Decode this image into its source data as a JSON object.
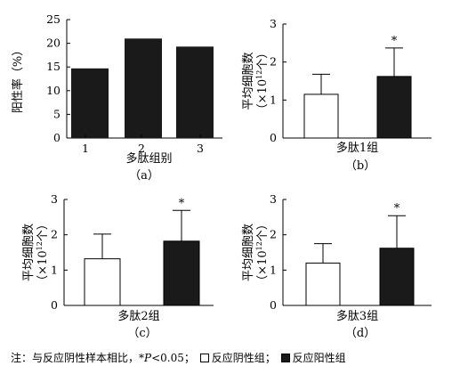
{
  "chart_data": [
    {
      "panel": "(a)",
      "type": "bar",
      "ylabel": "阳性率（%）",
      "xlabel": "多肽组别",
      "categories": [
        "1",
        "2",
        "3"
      ],
      "values": [
        14.7,
        21.0,
        19.3
      ],
      "colors": [
        "#1a1a1a",
        "#1a1a1a",
        "#1a1a1a"
      ],
      "ylim": [
        0,
        25
      ],
      "yticks": [
        "0",
        "5",
        "10",
        "15",
        "20",
        "25"
      ],
      "caption": "（a）"
    },
    {
      "panel": "(b)",
      "type": "bar",
      "ylabel_line1": "平均细胞数",
      "ylabel_line2_pre": "（×10",
      "ylabel_sup": "12",
      "ylabel_line2_post": "个）",
      "xlabel": "多肽1组",
      "series": [
        {
          "name": "反应阴性组",
          "value": 1.15,
          "error": 0.53,
          "color": "#ffffff"
        },
        {
          "name": "反应阳性组",
          "value": 1.62,
          "error": 0.75,
          "color": "#1a1a1a",
          "annotation": "*"
        }
      ],
      "ylim": [
        0,
        3
      ],
      "yticks": [
        "0",
        "1",
        "2",
        "3"
      ],
      "caption": "（b）"
    },
    {
      "panel": "(c)",
      "type": "bar",
      "ylabel_line1": "平均细胞数",
      "ylabel_line2_pre": "（×10",
      "ylabel_sup": "12",
      "ylabel_line2_post": "个）",
      "xlabel": "多肽2组",
      "series": [
        {
          "name": "反应阴性组",
          "value": 1.32,
          "error": 0.7,
          "color": "#ffffff"
        },
        {
          "name": "反应阳性组",
          "value": 1.82,
          "error": 0.87,
          "color": "#1a1a1a",
          "annotation": "*"
        }
      ],
      "ylim": [
        0,
        3
      ],
      "yticks": [
        "0",
        "1",
        "2",
        "3"
      ],
      "caption": "（c）"
    },
    {
      "panel": "(d)",
      "type": "bar",
      "ylabel_line1": "平均细胞数",
      "ylabel_line2_pre": "（×10",
      "ylabel_sup": "12",
      "ylabel_line2_post": "个）",
      "xlabel": "多肽3组",
      "series": [
        {
          "name": "反应阴性组",
          "value": 1.2,
          "error": 0.55,
          "color": "#ffffff"
        },
        {
          "name": "反应阳性组",
          "value": 1.62,
          "error": 0.92,
          "color": "#1a1a1a",
          "annotation": "*"
        }
      ],
      "ylim": [
        0,
        3
      ],
      "yticks": [
        "0",
        "1",
        "2",
        "3"
      ],
      "caption": "（d）"
    }
  ],
  "footnote": {
    "prefix": "注：与反应阴性样本相比，",
    "p_symbol": "*P",
    "p_rest": "<0.05；",
    "legend_negative": "反应阴性组",
    "legend_positive": "反应阳性组",
    "separator": "；"
  }
}
